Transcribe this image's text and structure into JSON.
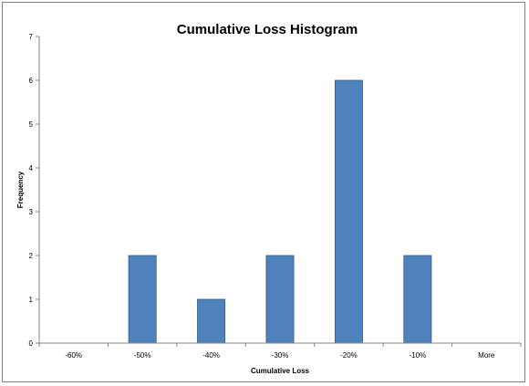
{
  "chart_data": {
    "type": "bar",
    "title": "Cumulative Loss Histogram",
    "xlabel": "Cumulative Loss",
    "ylabel": "Frequency",
    "categories": [
      "-60%",
      "-50%",
      "-40%",
      "-30%",
      "-20%",
      "-10%",
      "More"
    ],
    "values": [
      0,
      2,
      1,
      2,
      6,
      2,
      0
    ],
    "ylim": [
      0,
      7
    ],
    "yticks": [
      0,
      1,
      2,
      3,
      4,
      5,
      6,
      7
    ],
    "grid": false,
    "legend": "none",
    "colors": {
      "bar": "#4F81BD",
      "bar_edge": "#385D8A",
      "axis": "#868686"
    }
  }
}
